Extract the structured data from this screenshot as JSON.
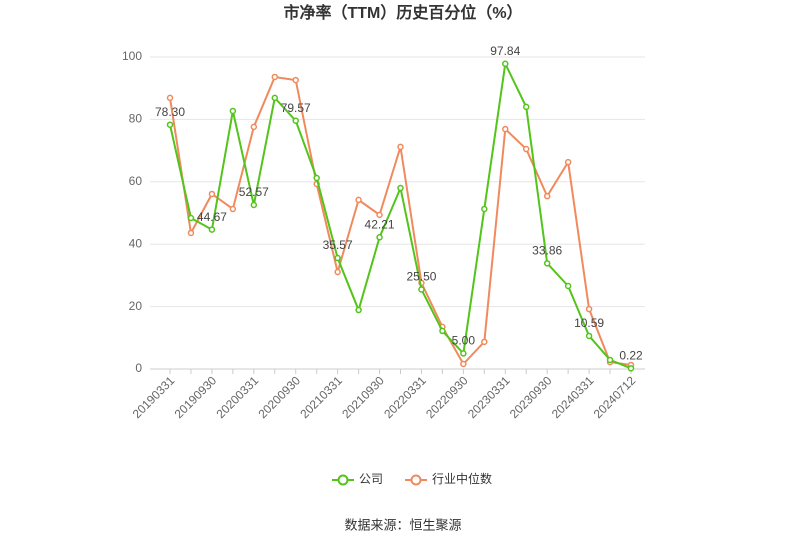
{
  "chart_data": {
    "type": "line",
    "title": "市净率（TTM）历史百分位（%）",
    "categories": [
      "20190331",
      null,
      "20190930",
      null,
      "20200331",
      null,
      "20200930",
      null,
      "20210331",
      null,
      "20210930",
      null,
      "20220331",
      null,
      "20220930",
      null,
      "20230331",
      null,
      "20230930",
      null,
      "20240331",
      null,
      "20240712"
    ],
    "series": [
      {
        "name": "公司",
        "color": "#52c41a",
        "values": [
          78.3,
          48.4,
          44.67,
          82.7,
          52.57,
          86.9,
          79.57,
          61.2,
          35.57,
          18.9,
          42.21,
          58.0,
          25.5,
          12.2,
          5.0,
          51.3,
          97.84,
          84.0,
          33.86,
          26.6,
          10.59,
          2.9,
          0.22
        ],
        "value_labels": [
          "78.30",
          null,
          "44.67",
          null,
          "52.57",
          null,
          "79.57",
          null,
          "35.57",
          null,
          "42.21",
          null,
          "25.50",
          null,
          "5.00",
          null,
          "97.84",
          null,
          "33.86",
          null,
          "10.59",
          null,
          "0.22"
        ]
      },
      {
        "name": "行业中位数",
        "color": "#f08a5d",
        "values": [
          86.9,
          43.6,
          56.1,
          51.3,
          77.6,
          93.6,
          92.6,
          59.3,
          31.1,
          54.2,
          49.4,
          71.2,
          27.6,
          13.5,
          1.6,
          8.7,
          76.9,
          70.5,
          55.4,
          66.3,
          19.2,
          2.2,
          1.3
        ]
      }
    ],
    "ylim": [
      0,
      100
    ],
    "yticks": [
      0,
      20,
      40,
      60,
      80,
      100
    ],
    "grid": true,
    "source": "数据来源：恒生聚源"
  }
}
